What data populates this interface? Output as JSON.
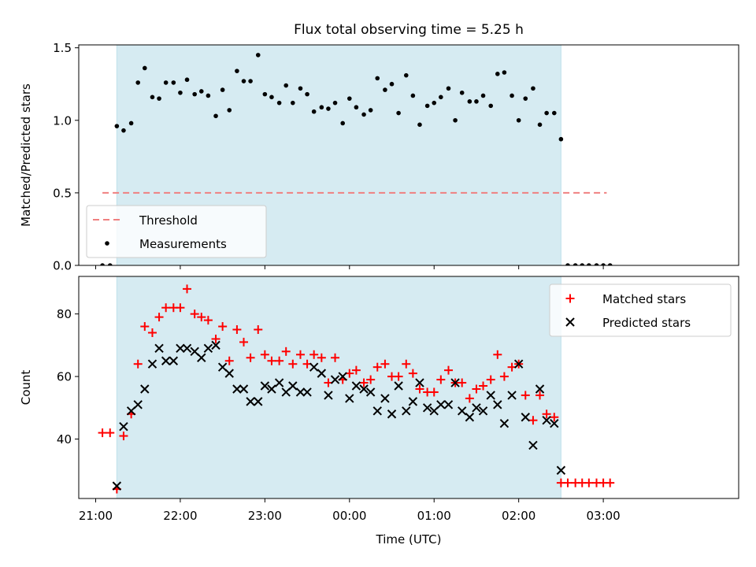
{
  "figure": {
    "title": "Flux total observing time = 5.25 h"
  },
  "chart_data": [
    {
      "type": "scatter",
      "title": "Flux total observing time = 5.25 h",
      "xlabel": "",
      "ylabel": "Matched/Predicted stars",
      "xlim": [
        -0.2,
        7.6
      ],
      "ylim": [
        0,
        1.52
      ],
      "yticks": [
        0.0,
        0.5,
        1.0,
        1.5
      ],
      "ytick_labels": [
        "0.0",
        "0.5",
        "1.0",
        "1.5"
      ],
      "shaded_region": {
        "x_start": 0.25,
        "x_end": 5.5,
        "color": "#add8e6"
      },
      "threshold": {
        "name": "Threshold",
        "y": 0.5,
        "x_start": 0.08,
        "x_end": 6.04,
        "color": "#f08080"
      },
      "legend": {
        "position": "lower-left",
        "entries": [
          "Threshold",
          "Measurements"
        ]
      },
      "series": [
        {
          "name": "Measurements",
          "marker": "dot",
          "color": "#000000",
          "x": [
            0.08,
            0.17,
            0.25,
            0.33,
            0.42,
            0.5,
            0.58,
            0.67,
            0.75,
            0.83,
            0.92,
            1.0,
            1.08,
            1.17,
            1.25,
            1.33,
            1.42,
            1.5,
            1.58,
            1.67,
            1.75,
            1.83,
            1.92,
            2.0,
            2.08,
            2.17,
            2.25,
            2.33,
            2.42,
            2.5,
            2.58,
            2.67,
            2.75,
            2.83,
            2.92,
            3.0,
            3.08,
            3.17,
            3.25,
            3.33,
            3.42,
            3.5,
            3.58,
            3.67,
            3.75,
            3.83,
            3.92,
            4.0,
            4.08,
            4.17,
            4.25,
            4.33,
            4.42,
            4.5,
            4.58,
            4.67,
            4.75,
            4.83,
            4.92,
            5.0,
            5.08,
            5.17,
            5.25,
            5.33,
            5.42,
            5.5,
            5.58,
            5.67,
            5.75,
            5.83,
            5.92,
            6.0,
            6.08
          ],
          "y": [
            0.0,
            0.0,
            0.96,
            0.93,
            0.98,
            1.26,
            1.36,
            1.16,
            1.15,
            1.26,
            1.26,
            1.19,
            1.28,
            1.18,
            1.2,
            1.17,
            1.03,
            1.21,
            1.07,
            1.34,
            1.27,
            1.27,
            1.45,
            1.18,
            1.16,
            1.12,
            1.24,
            1.12,
            1.22,
            1.18,
            1.06,
            1.09,
            1.08,
            1.12,
            0.98,
            1.15,
            1.09,
            1.04,
            1.07,
            1.29,
            1.21,
            1.25,
            1.05,
            1.31,
            1.17,
            0.97,
            1.1,
            1.12,
            1.16,
            1.22,
            1.0,
            1.19,
            1.13,
            1.13,
            1.17,
            1.1,
            1.32,
            1.33,
            1.17,
            1.0,
            1.15,
            1.22,
            0.97,
            1.05,
            1.05,
            0.87,
            0.0,
            0.0,
            0.0,
            0.0,
            0.0,
            0.0,
            0.0
          ]
        }
      ]
    },
    {
      "type": "scatter",
      "xlabel": "Time (UTC)",
      "ylabel": "Count",
      "xlim": [
        -0.2,
        7.6
      ],
      "ylim": [
        21,
        92
      ],
      "yticks": [
        40,
        60,
        80
      ],
      "ytick_labels": [
        "40",
        "60",
        "80"
      ],
      "xticks": [
        0,
        1,
        2,
        3,
        4,
        5,
        6
      ],
      "xtick_labels": [
        "21:00",
        "22:00",
        "23:00",
        "00:00",
        "01:00",
        "02:00",
        "03:00"
      ],
      "shaded_region": {
        "x_start": 0.25,
        "x_end": 5.5,
        "color": "#add8e6"
      },
      "legend": {
        "position": "upper-right",
        "entries": [
          "Matched stars",
          "Predicted stars"
        ]
      },
      "series": [
        {
          "name": "Matched stars",
          "marker": "plus",
          "color": "#ff0000",
          "x": [
            0.08,
            0.17,
            0.25,
            0.33,
            0.42,
            0.5,
            0.58,
            0.67,
            0.75,
            0.83,
            0.92,
            1.0,
            1.08,
            1.17,
            1.25,
            1.33,
            1.42,
            1.5,
            1.58,
            1.67,
            1.75,
            1.83,
            1.92,
            2.0,
            2.08,
            2.17,
            2.25,
            2.33,
            2.42,
            2.5,
            2.58,
            2.67,
            2.75,
            2.83,
            2.92,
            3.0,
            3.08,
            3.17,
            3.25,
            3.33,
            3.42,
            3.5,
            3.58,
            3.67,
            3.75,
            3.83,
            3.92,
            4.0,
            4.08,
            4.17,
            4.25,
            4.33,
            4.42,
            4.5,
            4.58,
            4.67,
            4.75,
            4.83,
            4.92,
            5.0,
            5.08,
            5.17,
            5.25,
            5.33,
            5.42,
            5.5,
            5.58,
            5.67,
            5.75,
            5.83,
            5.92,
            6.0,
            6.08
          ],
          "y": [
            42,
            42,
            24,
            41,
            48,
            64,
            76,
            74,
            79,
            82,
            82,
            82,
            88,
            80,
            79,
            78,
            72,
            76,
            65,
            75,
            71,
            66,
            75,
            67,
            65,
            65,
            68,
            64,
            67,
            64,
            67,
            66,
            58,
            66,
            59,
            61,
            62,
            58,
            59,
            63,
            64,
            60,
            60,
            64,
            61,
            56,
            55,
            55,
            59,
            62,
            58,
            58,
            53,
            56,
            57,
            59,
            67,
            60,
            63,
            64,
            54,
            46,
            54,
            48,
            47,
            26,
            26,
            26,
            26,
            26,
            26,
            26,
            26
          ]
        },
        {
          "name": "Predicted stars",
          "marker": "x",
          "color": "#000000",
          "x": [
            0.25,
            0.33,
            0.42,
            0.5,
            0.58,
            0.67,
            0.75,
            0.83,
            0.92,
            1.0,
            1.08,
            1.17,
            1.25,
            1.33,
            1.42,
            1.5,
            1.58,
            1.67,
            1.75,
            1.83,
            1.92,
            2.0,
            2.08,
            2.17,
            2.25,
            2.33,
            2.42,
            2.5,
            2.58,
            2.67,
            2.75,
            2.83,
            2.92,
            3.0,
            3.08,
            3.17,
            3.25,
            3.33,
            3.42,
            3.5,
            3.58,
            3.67,
            3.75,
            3.83,
            3.92,
            4.0,
            4.08,
            4.17,
            4.25,
            4.33,
            4.42,
            4.5,
            4.58,
            4.67,
            4.75,
            4.83,
            4.92,
            5.0,
            5.08,
            5.17,
            5.25,
            5.33,
            5.42,
            5.5
          ],
          "y": [
            25,
            44,
            49,
            51,
            56,
            64,
            69,
            65,
            65,
            69,
            69,
            68,
            66,
            69,
            70,
            63,
            61,
            56,
            56,
            52,
            52,
            57,
            56,
            58,
            55,
            57,
            55,
            55,
            63,
            61,
            54,
            59,
            60,
            53,
            57,
            56,
            55,
            49,
            53,
            48,
            57,
            49,
            52,
            58,
            50,
            49,
            51,
            51,
            58,
            49,
            47,
            50,
            49,
            54,
            51,
            45,
            54,
            64,
            47,
            38,
            56,
            46,
            45,
            30
          ]
        }
      ]
    }
  ]
}
